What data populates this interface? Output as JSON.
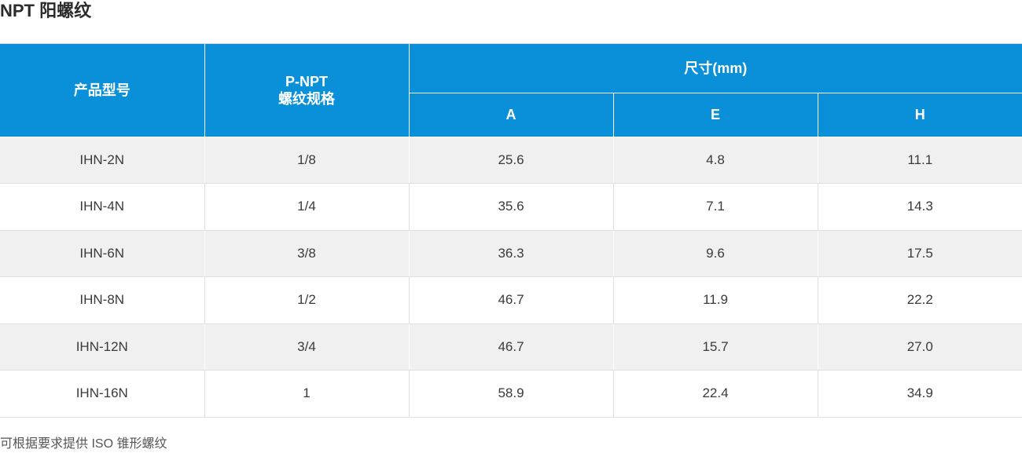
{
  "title": "NPT 阳螺纹",
  "table": {
    "headers": {
      "model": "产品型号",
      "thread_line1": "P-NPT",
      "thread_line2": "螺纹规格",
      "dimensions": "尺寸(mm)",
      "a": "A",
      "e": "E",
      "h": "H"
    },
    "rows": [
      [
        "IHN-2N",
        "1/8",
        "25.6",
        "4.8",
        "11.1"
      ],
      [
        "IHN-4N",
        "1/4",
        "35.6",
        "7.1",
        "14.3"
      ],
      [
        "IHN-6N",
        "3/8",
        "36.3",
        "9.6",
        "17.5"
      ],
      [
        "IHN-8N",
        "1/2",
        "46.7",
        "11.9",
        "22.2"
      ],
      [
        "IHN-12N",
        "3/4",
        "46.7",
        "15.7",
        "27.0"
      ],
      [
        "IHN-16N",
        "1",
        "58.9",
        "22.4",
        "34.9"
      ]
    ]
  },
  "colors": {
    "header_bg": "#0a8fd9",
    "stripe_bg": "#f0f0f1"
  },
  "note": "可根据要求提供 ISO 锥形螺纹"
}
